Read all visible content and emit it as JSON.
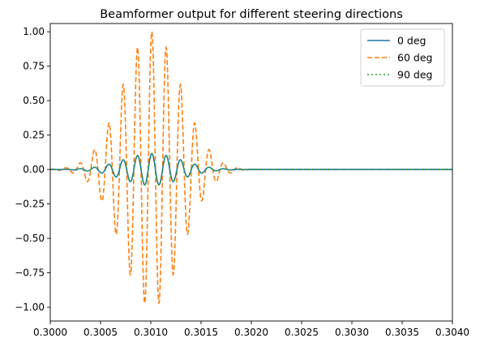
{
  "chart_data": {
    "type": "line",
    "title": "Beamformer output for different steering directions",
    "xlabel": "",
    "ylabel": "",
    "xlim": [
      0.3,
      0.304
    ],
    "ylim": [
      -1.1,
      1.06
    ],
    "grid": false,
    "legend_position": "top-right",
    "x_ticks": [
      "0.3000",
      "0.3005",
      "0.3010",
      "0.3015",
      "0.3020",
      "0.3025",
      "0.3030",
      "0.3035",
      "0.3040"
    ],
    "x_tick_values": [
      0.3,
      0.3005,
      0.301,
      0.3015,
      0.302,
      0.3025,
      0.303,
      0.3035,
      0.304
    ],
    "y_ticks": [
      "1.00",
      "0.75",
      "0.50",
      "0.25",
      "0.00",
      "−0.25",
      "−0.50",
      "−0.75",
      "−1.00"
    ],
    "y_tick_values": [
      1.0,
      0.75,
      0.5,
      0.25,
      0.0,
      -0.25,
      -0.5,
      -0.75,
      -1.0
    ],
    "signal": {
      "frequency_hz": 7000,
      "center_s": 0.30101,
      "end_s": 0.30205,
      "envelope_sigma_s": 0.00029
    },
    "series": [
      {
        "name": "0 deg",
        "color": "#1f77b4",
        "style": "solid",
        "amplitude": 0.115,
        "phase": 0.0
      },
      {
        "name": "60 deg",
        "color": "#ff7f0e",
        "style": "dashed",
        "amplitude": 1.0,
        "phase": 0.0
      },
      {
        "name": "90 deg",
        "color": "#2ca02c",
        "style": "dotted",
        "amplitude": 0.115,
        "phase": 0.0
      }
    ]
  }
}
